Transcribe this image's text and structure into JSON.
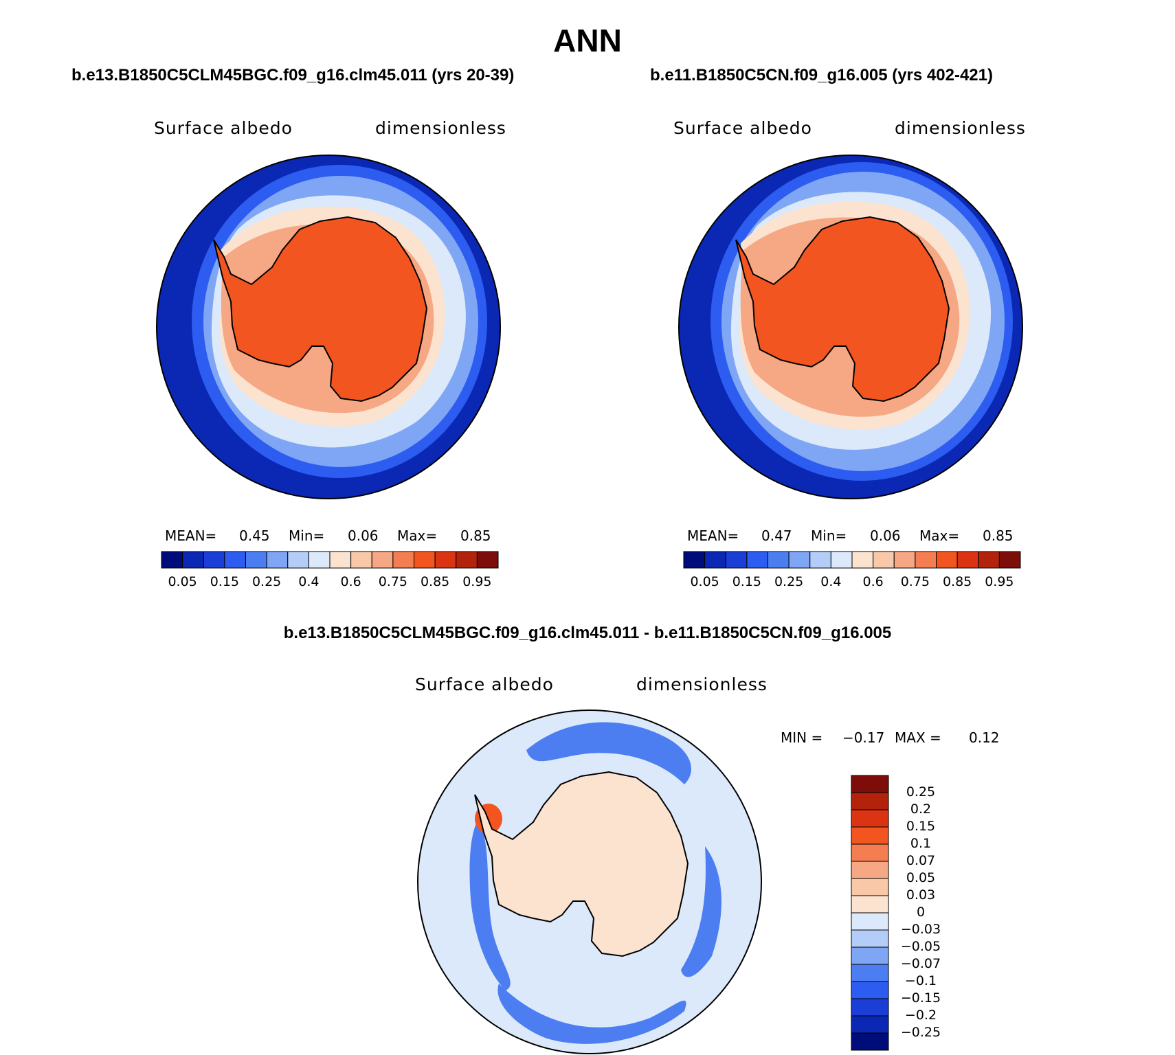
{
  "figure": {
    "title": "ANN",
    "left_case": "b.e13.B1850C5CLM45BGC.f09_g16.clm45.011 (yrs 20-39)",
    "right_case": "b.e11.B1850C5CN.f09_g16.005 (yrs 402-421)",
    "diff_case": "b.e13.B1850C5CLM45BGC.f09_g16.clm45.011 - b.e11.B1850C5CN.f09_g16.005"
  },
  "panels": {
    "left": {
      "variable": "Surface albedo",
      "units": "dimensionless",
      "mean_label": "MEAN=",
      "mean": "0.45",
      "min_label": "Min=",
      "min": "0.06",
      "max_label": "Max=",
      "max": "0.85"
    },
    "right": {
      "variable": "Surface albedo",
      "units": "dimensionless",
      "mean_label": "MEAN=",
      "mean": "0.47",
      "min_label": "Min=",
      "min": "0.06",
      "max_label": "Max=",
      "max": "0.85"
    },
    "diff": {
      "variable": "Surface albedo",
      "units": "dimensionless",
      "min_label": "MIN =",
      "min": "−0.17",
      "max_label": "MAX =",
      "max": "0.12"
    }
  },
  "colorbars": {
    "abs_colors": [
      "#000c7a",
      "#0a28b4",
      "#1a3ed6",
      "#2c5cf0",
      "#4c7ef2",
      "#7ea6f4",
      "#b4ccf8",
      "#dbe9fb",
      "#fbe3d0",
      "#f8c8a9",
      "#f5a883",
      "#f57d52",
      "#f2551f",
      "#da3412",
      "#b3230c",
      "#7d0d08"
    ],
    "abs_ticks": [
      "0.05",
      "0.15",
      "0.25",
      "0.4",
      "0.6",
      "0.75",
      "0.85",
      "0.95"
    ],
    "diff_colors": [
      "#7d0d08",
      "#b3230c",
      "#da3412",
      "#f2551f",
      "#f57d52",
      "#f5a883",
      "#f8c8a9",
      "#fbe3d0",
      "#dbe9fb",
      "#b4ccf8",
      "#7ea6f4",
      "#4c7ef2",
      "#2c5cf0",
      "#1a3ed6",
      "#0a28b4",
      "#000c7a"
    ],
    "diff_ticks": [
      "0.25",
      "0.2",
      "0.15",
      "0.1",
      "0.07",
      "0.05",
      "0.03",
      "0",
      "−0.03",
      "−0.05",
      "−0.07",
      "−0.1",
      "−0.15",
      "−0.2",
      "−0.25"
    ]
  },
  "map_colors": {
    "ocean_dark": "#0a28b4",
    "ocean_mid": "#2c5cf0",
    "ocean_light": "#7ea6f4",
    "ice_pale": "#dbe9fb",
    "ice_peach": "#fbe3d0",
    "ice_salmon": "#f5a883",
    "land": "#f2551f",
    "diff_bg": "#dbe9fb",
    "diff_land": "#fbe3d0",
    "diff_blue": "#4c7ef2",
    "diff_red": "#f2551f"
  }
}
